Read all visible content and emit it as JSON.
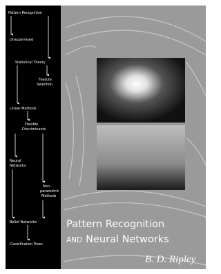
{
  "cover": {
    "flowchart": {
      "nodes": [
        {
          "lines": [
            "Pattern Recognition"
          ]
        },
        {
          "lines": [
            "Unsupervised"
          ]
        },
        {
          "lines": [
            "Statistical Theory"
          ]
        },
        {
          "lines": [
            "Feature",
            "Selection"
          ]
        },
        {
          "lines": [
            "Linear Methods"
          ]
        },
        {
          "lines": [
            "Flexible",
            "Discriminants"
          ]
        },
        {
          "lines": [
            "Neural",
            "Networks"
          ]
        },
        {
          "lines": [
            "Non-",
            "parametric",
            "Methods"
          ]
        },
        {
          "lines": [
            "Belief Networks"
          ]
        },
        {
          "lines": [
            "Classification Trees"
          ]
        }
      ]
    },
    "title": {
      "line1": "Pattern Recognition",
      "conjunction": "AND",
      "line2": "Neural Networks"
    },
    "author": "B. D. Ripley"
  }
}
